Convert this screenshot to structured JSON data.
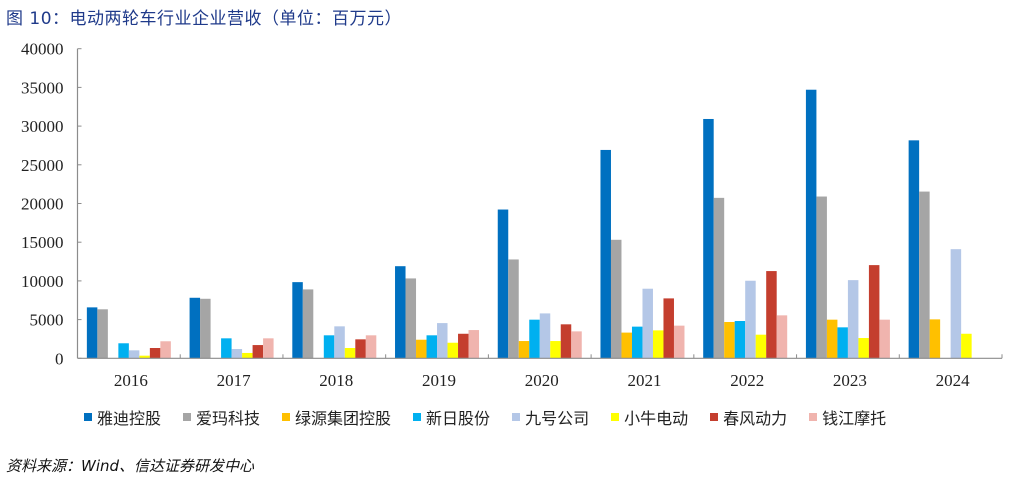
{
  "figure": {
    "title": "图 10：电动两轮车行业企业营收（单位：百万元）",
    "source": "资料来源：Wind、信达证券研发中心"
  },
  "chart_data": {
    "type": "bar",
    "title": "电动两轮车行业企业营收（单位：百万元）",
    "xlabel": "",
    "ylabel": "",
    "ylim": [
      0,
      40000
    ],
    "yticks": [
      0,
      5000,
      10000,
      15000,
      20000,
      25000,
      30000,
      35000,
      40000
    ],
    "grid": false,
    "legend_position": "bottom",
    "categories": [
      "2016",
      "2017",
      "2018",
      "2019",
      "2020",
      "2021",
      "2022",
      "2023",
      "2024"
    ],
    "series": [
      {
        "name": "雅迪控股",
        "color": "#0070C0",
        "values": [
          6580,
          7820,
          9840,
          11900,
          19220,
          26920,
          30920,
          34700,
          28160
        ]
      },
      {
        "name": "爱玛科技",
        "color": "#A5A5A5",
        "values": [
          6330,
          7690,
          8900,
          10320,
          12770,
          15310,
          20730,
          20900,
          21540
        ]
      },
      {
        "name": "绿源集团控股",
        "color": "#FFC000",
        "values": [
          null,
          null,
          null,
          2400,
          2230,
          3320,
          4690,
          4990,
          5030
        ]
      },
      {
        "name": "新日股份",
        "color": "#00B0F0",
        "values": [
          1940,
          2580,
          2970,
          2970,
          4990,
          4090,
          4820,
          4000,
          null
        ]
      },
      {
        "name": "九号公司",
        "color": "#B4C7E7",
        "values": [
          1030,
          1200,
          4130,
          4550,
          5800,
          8990,
          10020,
          10100,
          14100
        ]
      },
      {
        "name": "小牛电动",
        "color": "#FFFF00",
        "values": [
          340,
          690,
          1330,
          2010,
          2230,
          3610,
          3050,
          2620,
          3170
        ]
      },
      {
        "name": "春风动力",
        "color": "#C43E2E",
        "values": [
          1330,
          1710,
          2450,
          3170,
          4390,
          7740,
          11270,
          12040,
          null
        ]
      },
      {
        "name": "钱江摩托",
        "color": "#F0B4AE",
        "values": [
          2200,
          2580,
          2970,
          3650,
          3480,
          4220,
          5550,
          4990,
          null
        ]
      }
    ]
  }
}
